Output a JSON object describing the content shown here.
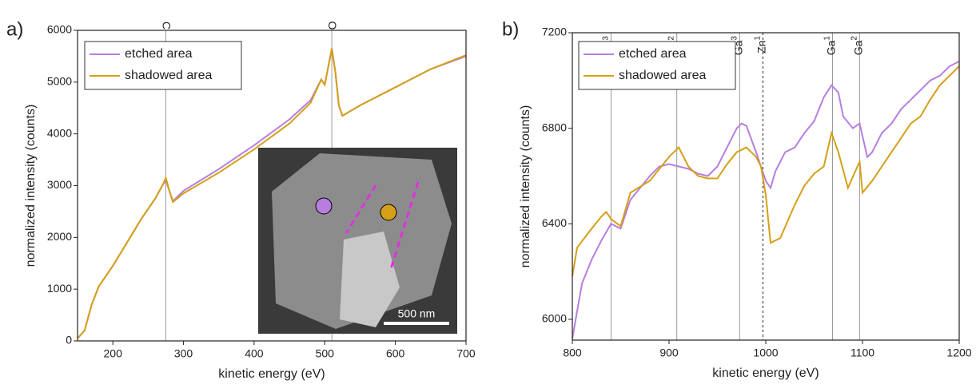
{
  "chart_data": [
    {
      "type": "line",
      "panel_label": "a)",
      "x_label": "kinetic energy (eV)",
      "y_label": "normalized intensity (counts)",
      "xlim": [
        150,
        700
      ],
      "ylim": [
        0,
        6000
      ],
      "xticks": [
        200,
        300,
        400,
        500,
        600,
        700
      ],
      "yticks": [
        0,
        1000,
        2000,
        3000,
        4000,
        5000,
        6000
      ],
      "legend": "upper left",
      "ref_lines": [
        {
          "x": 275,
          "label": "C"
        },
        {
          "x": 510,
          "label": "O"
        }
      ],
      "inset_scale_label": "500 nm",
      "series": [
        {
          "name": "etched area",
          "color": "#b77ee0",
          "x": [
            150,
            160,
            170,
            180,
            200,
            220,
            240,
            260,
            270,
            275,
            280,
            285,
            300,
            350,
            400,
            450,
            480,
            495,
            500,
            505,
            510,
            515,
            520,
            525,
            550,
            600,
            650,
            700
          ],
          "values": [
            50,
            200,
            700,
            1050,
            1450,
            1900,
            2350,
            2750,
            3000,
            3100,
            2900,
            2700,
            2900,
            3320,
            3780,
            4280,
            4650,
            5050,
            4950,
            5300,
            5650,
            5200,
            4550,
            4350,
            4550,
            4900,
            5250,
            5500
          ]
        },
        {
          "name": "shadowed area",
          "color": "#d4a017",
          "x": [
            150,
            160,
            170,
            180,
            200,
            220,
            240,
            260,
            270,
            275,
            280,
            285,
            300,
            350,
            400,
            450,
            480,
            495,
            500,
            505,
            510,
            515,
            520,
            525,
            550,
            600,
            650,
            700
          ],
          "values": [
            50,
            200,
            700,
            1050,
            1450,
            1900,
            2350,
            2750,
            3000,
            3150,
            2900,
            2680,
            2850,
            3250,
            3700,
            4200,
            4600,
            5050,
            4950,
            5300,
            5650,
            5200,
            4550,
            4350,
            4550,
            4900,
            5250,
            5520
          ]
        }
      ]
    },
    {
      "type": "line",
      "panel_label": "b)",
      "x_label": "kinetic energy (eV)",
      "y_label": "normalized intensity (counts)",
      "xlim": [
        800,
        1200
      ],
      "ylim": [
        5913,
        7200
      ],
      "xticks": [
        800,
        900,
        1000,
        1100,
        1200
      ],
      "yticks": [
        6000,
        6400,
        6800,
        7200
      ],
      "legend": "upper left",
      "ref_lines": [
        {
          "x": 840,
          "label": "Zn",
          "sup": "3"
        },
        {
          "x": 908,
          "label": "Zn",
          "sup": "2"
        },
        {
          "x": 973,
          "label": "Ga",
          "sup": "3"
        },
        {
          "x": 997,
          "label": "Zn",
          "sup": "1",
          "dotted": true
        },
        {
          "x": 1069,
          "label": "Ga",
          "sup": "1"
        },
        {
          "x": 1097,
          "label": "Ga",
          "sup": "2"
        }
      ],
      "series": [
        {
          "name": "etched area",
          "color": "#b77ee0",
          "x": [
            800,
            810,
            820,
            830,
            840,
            850,
            860,
            870,
            880,
            890,
            900,
            910,
            920,
            930,
            940,
            950,
            960,
            970,
            975,
            980,
            990,
            1000,
            1005,
            1010,
            1020,
            1030,
            1040,
            1050,
            1060,
            1068,
            1075,
            1080,
            1090,
            1097,
            1105,
            1110,
            1120,
            1130,
            1140,
            1150,
            1160,
            1170,
            1180,
            1190,
            1200
          ],
          "values": [
            5920,
            6150,
            6250,
            6330,
            6400,
            6380,
            6500,
            6550,
            6600,
            6640,
            6650,
            6640,
            6630,
            6610,
            6600,
            6640,
            6720,
            6800,
            6820,
            6810,
            6700,
            6580,
            6550,
            6620,
            6700,
            6720,
            6780,
            6830,
            6930,
            6980,
            6950,
            6850,
            6800,
            6820,
            6680,
            6700,
            6780,
            6820,
            6880,
            6920,
            6960,
            7000,
            7020,
            7060,
            7080
          ]
        },
        {
          "name": "shadowed area",
          "color": "#d4a017",
          "x": [
            800,
            805,
            820,
            830,
            835,
            840,
            850,
            860,
            880,
            900,
            910,
            920,
            930,
            940,
            950,
            960,
            970,
            980,
            990,
            995,
            1000,
            1005,
            1015,
            1030,
            1040,
            1050,
            1060,
            1068,
            1075,
            1085,
            1097,
            1100,
            1110,
            1130,
            1150,
            1160,
            1170,
            1180,
            1190,
            1200
          ],
          "values": [
            6180,
            6300,
            6380,
            6430,
            6450,
            6420,
            6390,
            6530,
            6580,
            6680,
            6720,
            6640,
            6600,
            6590,
            6590,
            6650,
            6700,
            6720,
            6680,
            6640,
            6520,
            6320,
            6340,
            6480,
            6560,
            6610,
            6640,
            6780,
            6700,
            6550,
            6660,
            6530,
            6580,
            6700,
            6820,
            6850,
            6920,
            6980,
            7020,
            7060
          ]
        }
      ]
    }
  ]
}
